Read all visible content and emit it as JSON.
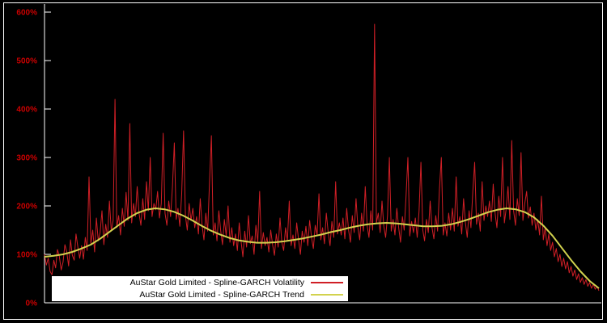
{
  "chart_data": {
    "type": "line",
    "ylim": [
      0,
      600
    ],
    "y_ticks": [
      "0%",
      "100%",
      "200%",
      "300%",
      "400%",
      "500%",
      "600%"
    ],
    "grid": false,
    "legend_position": "bottom-left",
    "background_color": "#000000",
    "axis_color": "#ffffff",
    "tick_label_color": "#cc0000",
    "series": [
      {
        "name": "AuStar Gold Limited - Spline-GARCH Volatility",
        "color": "#d01f26",
        "stroke_width": 1,
        "data_name": "volatility-line",
        "values": [
          100,
          78,
          92,
          65,
          58,
          88,
          72,
          110,
          96,
          68,
          84,
          120,
          105,
          76,
          130,
          98,
          88,
          142,
          115,
          92,
          118,
          90,
          135,
          108,
          260,
          122,
          150,
          105,
          175,
          128,
          145,
          190,
          120,
          162,
          135,
          210,
          148,
          170,
          420,
          155,
          180,
          140,
          195,
          158,
          228,
          170,
          370,
          165,
          205,
          178,
          240,
          185,
          160,
          215,
          172,
          250,
          190,
          300,
          178,
          205,
          192,
          230,
          175,
          205,
          350,
          185,
          160,
          210,
          178,
          240,
          330,
          172,
          195,
          158,
          225,
          355,
          180,
          150,
          205,
          170,
          195,
          155,
          178,
          142,
          215,
          160,
          130,
          185,
          148,
          250,
          345,
          140,
          165,
          128,
          190,
          150,
          120,
          172,
          138,
          200,
          125,
          155,
          118,
          142,
          108,
          165,
          128,
          95,
          148,
          115,
          180,
          122,
          138,
          100,
          160,
          125,
          230,
          112,
          145,
          118,
          135,
          105,
          150,
          120,
          98,
          142,
          115,
          175,
          125,
          108,
          155,
          128,
          210,
          118,
          140,
          112,
          165,
          130,
          100,
          148,
          125,
          158,
          118,
          170,
          135,
          112,
          160,
          140,
          225,
          130,
          155,
          122,
          185,
          145,
          118,
          168,
          135,
          250,
          142,
          165,
          140,
          175,
          132,
          195,
          150,
          125,
          180,
          145,
          215,
          155,
          130,
          185,
          148,
          240,
          160,
          135,
          190,
          150,
          575,
          165,
          185,
          145,
          210,
          158,
          135,
          180,
          300,
          148,
          172,
          140,
          195,
          155,
          125,
          178,
          150,
          220,
          300,
          138,
          168,
          145,
          175,
          135,
          190,
          290,
          150,
          128,
          172,
          145,
          210,
          155,
          132,
          180,
          148,
          235,
          300,
          140,
          165,
          138,
          185,
          150,
          195,
          148,
          260,
          158,
          178,
          142,
          215,
          165,
          135,
          190,
          155,
          230,
          290,
          162,
          185,
          148,
          250,
          170,
          200,
          178,
          210,
          168,
          245,
          185,
          155,
          220,
          178,
          300,
          165,
          195,
          240,
          172,
          335,
          190,
          160,
          215,
          180,
          310,
          170,
          205,
          230,
          175,
          198,
          160,
          185,
          150,
          172,
          140,
          220,
          130,
          155,
          118,
          142,
          108,
          125,
          95,
          112,
          85,
          100,
          75,
          92,
          70,
          85,
          62,
          75,
          55,
          68,
          48,
          60,
          42,
          52,
          38,
          48,
          34,
          42,
          30,
          38,
          28,
          34,
          25
        ]
      },
      {
        "name": "AuStar Gold Limited - Spline-GARCH Trend",
        "color": "#d2d24e",
        "stroke_width": 2,
        "data_name": "trend-line",
        "values": [
          95,
          97,
          100,
          105,
          112,
          120,
          132,
          146,
          160,
          174,
          185,
          192,
          195,
          193,
          188,
          180,
          170,
          159,
          149,
          141,
          134,
          129,
          126,
          124,
          124,
          125,
          127,
          130,
          133,
          137,
          141,
          146,
          150,
          155,
          159,
          162,
          164,
          165,
          164,
          162,
          160,
          158,
          158,
          159,
          162,
          167,
          173,
          180,
          187,
          192,
          195,
          193,
          187,
          176,
          159,
          138,
          113,
          88,
          65,
          45,
          30
        ]
      }
    ]
  },
  "legend": {
    "items": [
      {
        "label": "AuStar Gold Limited - Spline-GARCH Volatility"
      },
      {
        "label": "AuStar Gold Limited - Spline-GARCH Trend"
      }
    ]
  }
}
